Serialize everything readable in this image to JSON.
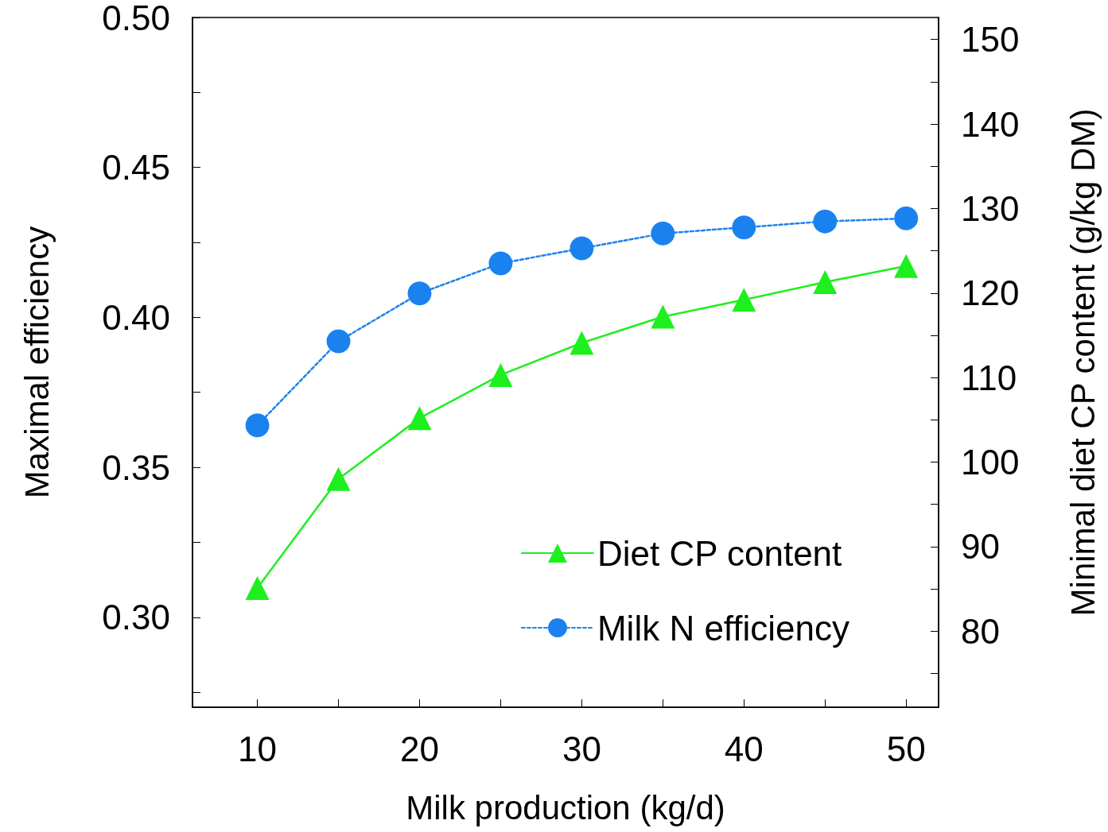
{
  "chart_data": {
    "type": "line",
    "xlabel": "Milk production (kg/d)",
    "ylabel": "Maximal efficiency",
    "y2label": "Minimal diet CP content (g/kg DM)",
    "x": [
      10,
      15,
      20,
      25,
      30,
      35,
      40,
      45,
      50
    ],
    "series": [
      {
        "name": "Diet CP content",
        "color": "#1eef1e",
        "axis": "y2",
        "marker": "triangle",
        "line_style": "solid",
        "values": [
          85.1,
          98.0,
          105.2,
          110.3,
          114.1,
          117.2,
          119.2,
          121.3,
          123.2
        ]
      },
      {
        "name": "Milk N efficiency",
        "color": "#1a82ef",
        "marker": "circle",
        "line_style": "dashed",
        "values": [
          0.364,
          0.392,
          0.408,
          0.418,
          0.423,
          0.428,
          0.43,
          0.432,
          0.433
        ]
      }
    ],
    "xlim": [
      6,
      52
    ],
    "xticks": [
      10,
      {
        "value": 15,
        "label": null
      },
      20,
      {
        "value": 25,
        "label": null
      },
      30,
      {
        "value": 35,
        "label": null
      },
      40,
      {
        "value": 45,
        "label": null
      },
      50
    ],
    "ylim": [
      0.27,
      0.5
    ],
    "yticks": [
      {
        "value": 0.275,
        "label": null
      },
      {
        "value": 0.3,
        "label": "0.30"
      },
      {
        "value": 0.325,
        "label": null
      },
      {
        "value": 0.35,
        "label": "0.35"
      },
      {
        "value": 0.375,
        "label": null
      },
      {
        "value": 0.4,
        "label": "0.40"
      },
      {
        "value": 0.425,
        "label": null
      },
      {
        "value": 0.45,
        "label": "0.45"
      },
      {
        "value": 0.475,
        "label": null
      },
      {
        "value": 0.5,
        "label": "0.50"
      }
    ],
    "y2lim": [
      71,
      152.6
    ],
    "y2ticks": [
      {
        "value": 75,
        "label": null
      },
      80,
      {
        "value": 85,
        "label": null
      },
      90,
      {
        "value": 95,
        "label": null
      },
      100,
      {
        "value": 105,
        "label": null
      },
      110,
      {
        "value": 115,
        "label": null
      },
      120,
      {
        "value": 125,
        "label": null
      },
      130,
      {
        "value": 135,
        "label": null
      },
      140,
      {
        "value": 145,
        "label": null
      },
      150
    ],
    "grid": false,
    "legend": "bottom right"
  }
}
